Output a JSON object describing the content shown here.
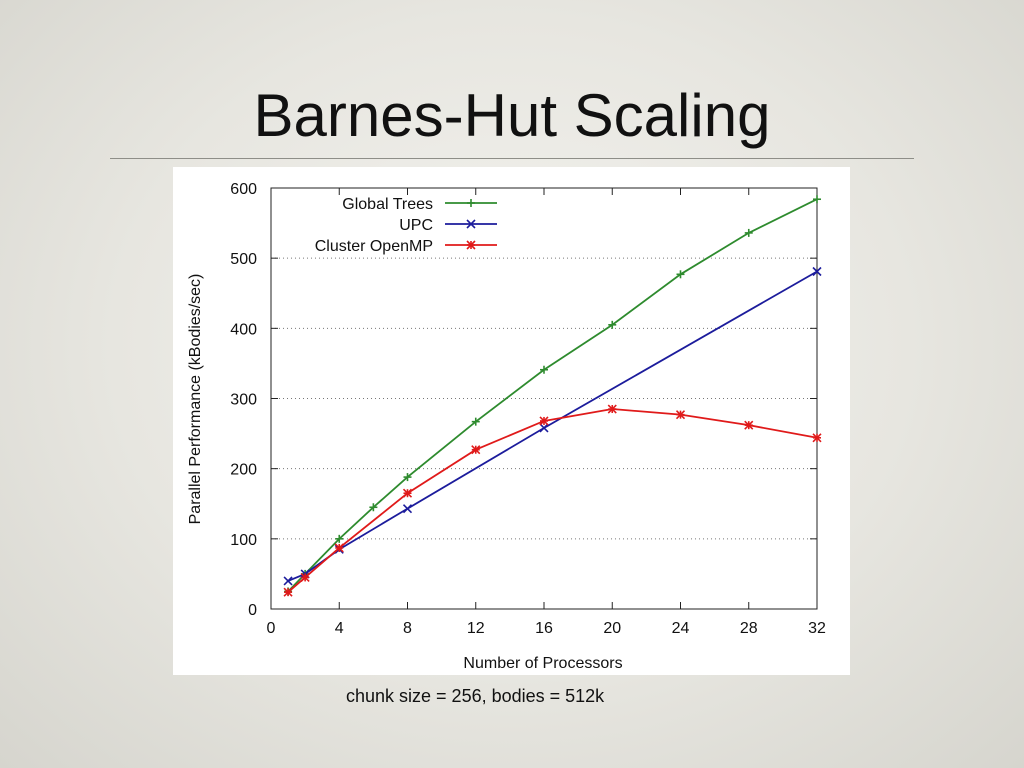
{
  "slide": {
    "title": "Barnes-Hut Scaling",
    "caption": "chunk size = 256, bodies = 512k"
  },
  "chart_data": {
    "type": "line",
    "xlabel": "Number of Processors",
    "ylabel": "Parallel Performance (kBodies/sec)",
    "xlim": [
      0,
      32
    ],
    "ylim": [
      0,
      600
    ],
    "xticks": [
      0,
      4,
      8,
      12,
      16,
      20,
      24,
      28,
      32
    ],
    "yticks": [
      0,
      100,
      200,
      300,
      400,
      500,
      600
    ],
    "grid": "horizontal dotted",
    "legend_position": "top-left",
    "series": [
      {
        "name": "Global Trees",
        "color": "#2e8b2e",
        "marker": "plus",
        "x": [
          1,
          2,
          4,
          6,
          8,
          12,
          16,
          20,
          24,
          28,
          32
        ],
        "y": [
          25,
          50,
          100,
          145,
          188,
          267,
          341,
          405,
          477,
          536,
          584
        ]
      },
      {
        "name": "UPC",
        "color": "#1c1c9c",
        "marker": "cross",
        "x": [
          1,
          2,
          4,
          8,
          16,
          32
        ],
        "y": [
          40,
          50,
          85,
          143,
          258,
          481
        ]
      },
      {
        "name": "Cluster OpenMP",
        "color": "#e01a1a",
        "marker": "star",
        "x": [
          1,
          2,
          4,
          8,
          12,
          16,
          20,
          24,
          28,
          32
        ],
        "y": [
          24,
          45,
          87,
          165,
          227,
          268,
          285,
          277,
          262,
          244
        ]
      }
    ]
  }
}
